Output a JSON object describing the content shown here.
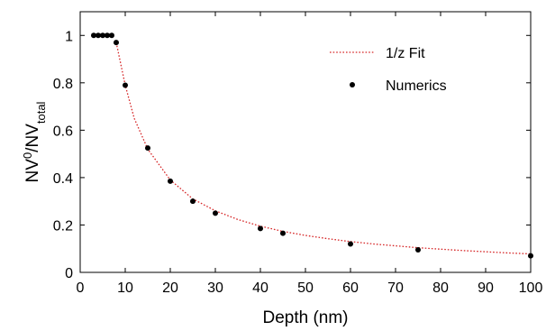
{
  "chart_data": {
    "type": "scatter",
    "title": "",
    "xlabel": "Depth (nm)",
    "ylabel": {
      "base1": "NV",
      "sup": "0",
      "slash": "/NV",
      "sub": "total"
    },
    "xlim": [
      0,
      100
    ],
    "ylim": [
      0,
      1.1
    ],
    "xticks": [
      0,
      10,
      20,
      30,
      40,
      50,
      60,
      70,
      80,
      90,
      100
    ],
    "xtick_labels": [
      "0",
      "10",
      "20",
      "30",
      "40",
      "50",
      "60",
      "70",
      "80",
      "90",
      "100"
    ],
    "yticks": [
      0,
      0.2,
      0.4,
      0.6,
      0.8,
      1.0
    ],
    "ytick_labels": [
      "0",
      "0.2",
      "0.4",
      "0.6",
      "0.8",
      "1"
    ],
    "grid": false,
    "legend_position": "top-right",
    "series": [
      {
        "name": "1/z Fit",
        "kind": "line",
        "style": "dotted",
        "color": "#d62728",
        "x": [
          8,
          10,
          12,
          15,
          20,
          25,
          30,
          35,
          40,
          45,
          50,
          55,
          60,
          65,
          70,
          75,
          80,
          85,
          90,
          95,
          100
        ],
        "y": [
          0.97,
          0.79,
          0.65,
          0.52,
          0.39,
          0.31,
          0.26,
          0.223,
          0.195,
          0.173,
          0.156,
          0.142,
          0.13,
          0.12,
          0.112,
          0.104,
          0.098,
          0.092,
          0.087,
          0.082,
          0.078
        ]
      },
      {
        "name": "Numerics",
        "kind": "scatter",
        "color": "#000000",
        "x": [
          3,
          4,
          5,
          6,
          7,
          8,
          10,
          15,
          20,
          25,
          30,
          40,
          45,
          60,
          75,
          100
        ],
        "y": [
          1.0,
          1.0,
          1.0,
          1.0,
          1.0,
          0.97,
          0.79,
          0.525,
          0.385,
          0.3,
          0.25,
          0.185,
          0.165,
          0.12,
          0.095,
          0.07
        ]
      }
    ]
  }
}
